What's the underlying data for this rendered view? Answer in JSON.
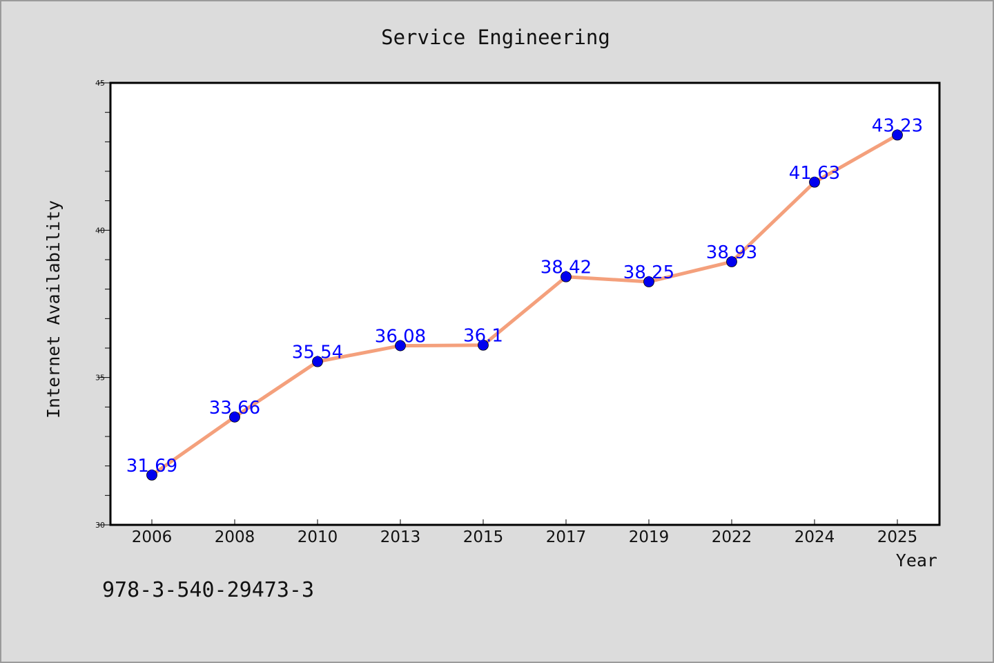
{
  "chart_data": {
    "type": "line",
    "title": "Service Engineering",
    "xlabel": "Year",
    "ylabel": "Internet Availability",
    "categories": [
      "2006",
      "2008",
      "2010",
      "2013",
      "2015",
      "2017",
      "2019",
      "2022",
      "2024",
      "2025"
    ],
    "series": [
      {
        "values": [
          31.69,
          33.66,
          35.54,
          36.08,
          36.1,
          38.42,
          38.25,
          38.93,
          41.63,
          43.23
        ],
        "line_color": "#f4a07c",
        "marker_color": "#0000ee"
      }
    ],
    "data_labels": [
      "31.69",
      "33.66",
      "35.54",
      "36.08",
      "36.1",
      "38.42",
      "38.25",
      "38.93",
      "41.63",
      "43.23"
    ],
    "ylim": [
      30,
      45
    ],
    "y_ticks": [
      "30",
      "35",
      "40",
      "45"
    ],
    "grid": false,
    "legend": false
  },
  "footer": {
    "code": "978-3-540-29473-3"
  }
}
